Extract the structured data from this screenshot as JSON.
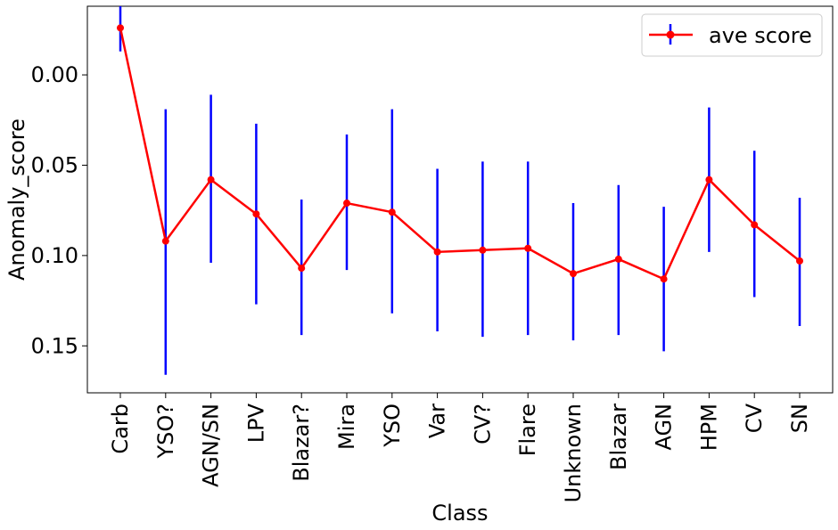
{
  "chart_data": {
    "type": "line",
    "title": "",
    "xlabel": "Class",
    "ylabel": "Anomaly_score",
    "y_axis_inverted": true,
    "ylim": [
      -0.038,
      0.176
    ],
    "yticks": [
      0.0,
      0.05,
      0.1,
      0.15
    ],
    "ytick_labels": [
      "0.00",
      "0.05",
      "0.10",
      "0.15"
    ],
    "grid": false,
    "legend_position": "top-right",
    "categories": [
      "Carb",
      "YSO?",
      "AGN/SN",
      "LPV",
      "Blazar?",
      "Mira",
      "YSO",
      "Var",
      "CV?",
      "Flare",
      "Unknown",
      "Blazar",
      "AGN",
      "HPM",
      "CV",
      "SN"
    ],
    "series": [
      {
        "name": "ave score",
        "line_color": "#ff0000",
        "errorbar_color": "#0000ff",
        "values": [
          -0.026,
          0.092,
          0.058,
          0.077,
          0.107,
          0.071,
          0.076,
          0.098,
          0.097,
          0.096,
          0.11,
          0.102,
          0.113,
          0.058,
          0.083,
          0.103
        ],
        "error_low": [
          -0.038,
          0.019,
          0.011,
          0.027,
          0.069,
          0.033,
          0.019,
          0.052,
          0.048,
          0.048,
          0.071,
          0.061,
          0.073,
          0.018,
          0.042,
          0.068
        ],
        "error_high": [
          -0.013,
          0.166,
          0.104,
          0.127,
          0.144,
          0.108,
          0.132,
          0.142,
          0.145,
          0.144,
          0.147,
          0.144,
          0.153,
          0.098,
          0.123,
          0.139
        ]
      }
    ]
  }
}
